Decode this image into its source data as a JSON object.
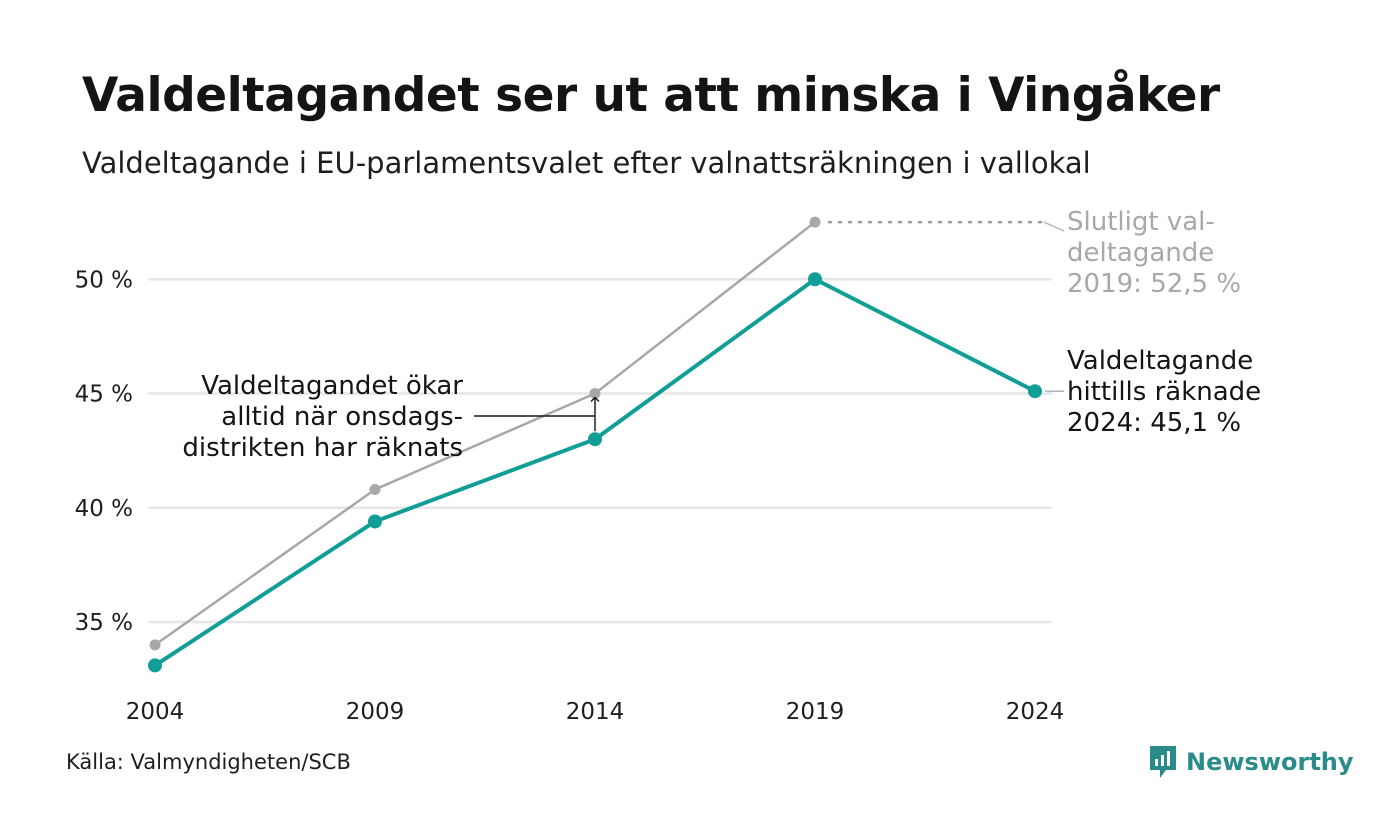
{
  "title": "Valdeltagandet ser ut att minska i Vingåker",
  "subtitle": "Valdeltagande i EU-parlamentsvalet efter valnattsräkningen i vallokal",
  "source": "Källa: Valmyndigheten/SCB",
  "brand": "Newsworthy",
  "colors": {
    "primary_series": "#109e96",
    "final_series": "#a8a8a8",
    "gridline": "#e6e6e6",
    "brand": "#2a8c88"
  },
  "chart_data": {
    "type": "line",
    "title": "Valdeltagandet ser ut att minska i Vingåker",
    "subtitle": "Valdeltagande i EU-parlamentsvalet efter valnattsräkningen i vallokal",
    "x": [
      2004,
      2009,
      2014,
      2019,
      2024
    ],
    "x_tick_labels": [
      "2004",
      "2009",
      "2014",
      "2019",
      "2024"
    ],
    "y_ticks": [
      35,
      40,
      45,
      50
    ],
    "y_tick_labels": [
      "35 %",
      "40 %",
      "45 %",
      "50 %"
    ],
    "ylim": [
      32.5,
      53
    ],
    "grid": true,
    "series": [
      {
        "name": "Valdeltagande hittills räknade",
        "color": "#109e96",
        "values": [
          33.1,
          39.4,
          43.0,
          50.0,
          45.1
        ]
      },
      {
        "name": "Slutligt valdeltagande",
        "color": "#a8a8a8",
        "values": [
          34.0,
          40.8,
          45.0,
          52.5,
          null
        ]
      }
    ],
    "annotations": {
      "final": [
        "Slutligt val-",
        "deltagande",
        "2019: 52,5 %"
      ],
      "current": [
        "Valdeltagande",
        "hittills räknade",
        "2024: 45,1 %"
      ],
      "note": [
        "Valdeltagandet ökar",
        "alltid när onsdags-",
        "distrikten har räknats"
      ]
    }
  }
}
